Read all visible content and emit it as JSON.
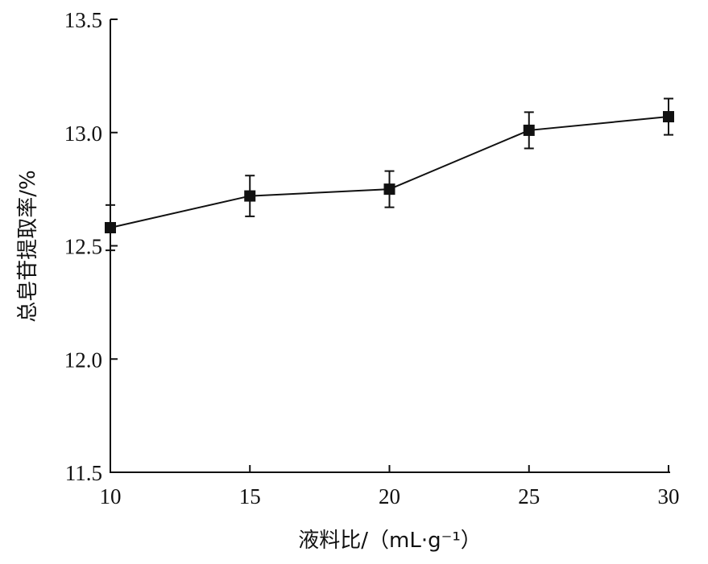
{
  "chart_data": {
    "type": "line",
    "xlabel": "液料比/（mL·g⁻¹）",
    "ylabel": "总皂苷提取率/%",
    "x": [
      10,
      15,
      20,
      25,
      30
    ],
    "x_ticks": [
      "10",
      "15",
      "20",
      "25",
      "30"
    ],
    "y_ticks": [
      "11.5",
      "12.0",
      "12.5",
      "13.0",
      "13.5"
    ],
    "xlim": [
      10,
      30
    ],
    "ylim": [
      11.5,
      13.5
    ],
    "grid": false,
    "series": [
      {
        "values": [
          12.58,
          12.72,
          12.75,
          13.01,
          13.07
        ],
        "error": [
          0.1,
          0.09,
          0.08,
          0.08,
          0.08
        ],
        "marker": "square",
        "color": "#111111"
      }
    ]
  }
}
